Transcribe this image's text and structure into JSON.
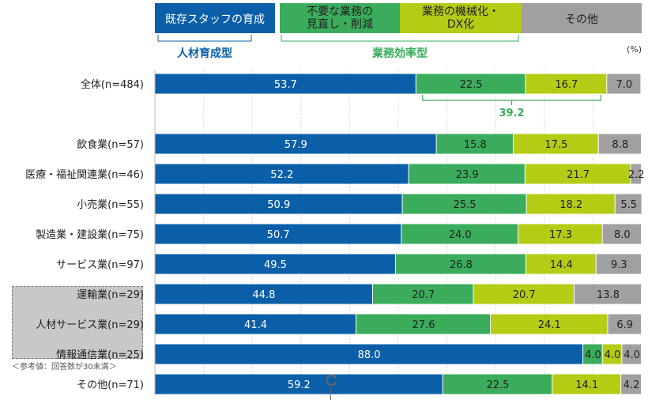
{
  "chart_data": {
    "type": "bar",
    "orientation": "horizontal",
    "stacked": true,
    "unit": "(%)",
    "legend": {
      "items": [
        {
          "label_lines": [
            "既存スタッフの育成"
          ],
          "color": "#0b5fa8"
        },
        {
          "label_lines": [
            "不要な業務の",
            "見直し・削減"
          ],
          "color": "#3aac5b"
        },
        {
          "label_lines": [
            "業務の機械化・",
            "DX化"
          ],
          "color": "#b4cc14"
        },
        {
          "label_lines": [
            "その他"
          ],
          "color": "#a0a0a0"
        }
      ],
      "groups": [
        {
          "label": "人材育成型",
          "color": "#0b5fa8"
        },
        {
          "label": "業務効率型",
          "color": "#3aac5b"
        }
      ]
    },
    "series_colors": [
      "#0b5fa8",
      "#3aac5b",
      "#b4cc14",
      "#a0a0a0"
    ],
    "categories": [
      "全体(n=484)",
      "飲食業(n=57)",
      "医療・福祉関連業(n=46)",
      "小売業(n=55)",
      "製造業・建設業(n=75)",
      "サービス業(n=97)",
      "運輸業(n=29)",
      "人材サービス業(n=29)",
      "情報通信業(n=25)",
      "その他(n=71)"
    ],
    "series": [
      {
        "values": [
          53.7,
          57.9,
          52.2,
          50.9,
          50.7,
          49.5,
          44.8,
          41.4,
          88.0,
          59.2
        ]
      },
      {
        "values": [
          22.5,
          15.8,
          23.9,
          25.5,
          24.0,
          26.8,
          20.7,
          27.6,
          4.0,
          22.5
        ]
      },
      {
        "values": [
          16.7,
          17.5,
          21.7,
          18.2,
          17.3,
          14.4,
          20.7,
          24.1,
          4.0,
          14.1
        ]
      },
      {
        "values": [
          7.0,
          8.8,
          2.2,
          5.5,
          8.0,
          9.3,
          13.8,
          6.9,
          4.0,
          4.2
        ]
      }
    ],
    "value_labels": [
      [
        "53.7",
        "22.5",
        "16.7",
        "7.0"
      ],
      [
        "57.9",
        "15.8",
        "17.5",
        "8.8"
      ],
      [
        "52.2",
        "23.9",
        "21.7",
        "2.2"
      ],
      [
        "50.9",
        "25.5",
        "18.2",
        "5.5"
      ],
      [
        "50.7",
        "24.0",
        "17.3",
        "8.0"
      ],
      [
        "49.5",
        "26.8",
        "14.4",
        "9.3"
      ],
      [
        "44.8",
        "20.7",
        "20.7",
        "13.8"
      ],
      [
        "41.4",
        "27.6",
        "24.1",
        "6.9"
      ],
      [
        "88.0",
        "4.0",
        "4.0",
        "4.0"
      ],
      [
        "59.2",
        "22.5",
        "14.1",
        "4.2"
      ]
    ],
    "annotation": {
      "label": "39.2",
      "category": "全体(n=484)",
      "spans_series": [
        1,
        2
      ]
    },
    "reference_note": "＜参考値：回答数が30未満＞",
    "xlim": [
      0,
      100
    ],
    "grid": true
  }
}
